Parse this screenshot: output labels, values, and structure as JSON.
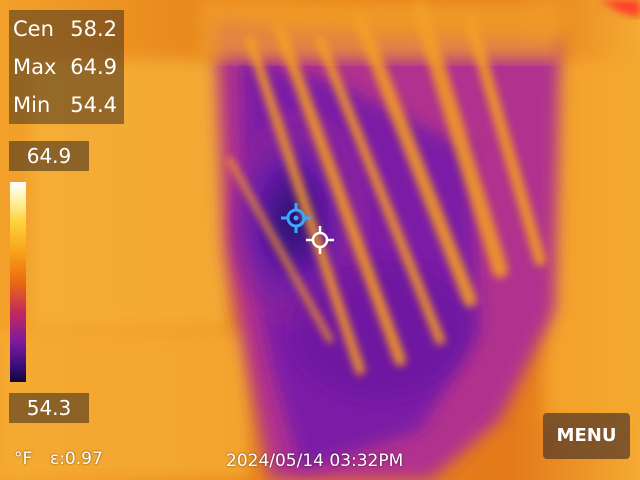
{
  "readouts": {
    "center": {
      "label": "Cen",
      "value": "58.2"
    },
    "max": {
      "label": "Max",
      "value": "64.9"
    },
    "min": {
      "label": "Min",
      "value": "54.4"
    }
  },
  "scale": {
    "top_value": "64.9",
    "bottom_value": "54.3"
  },
  "status": {
    "unit": "°F",
    "emissivity": "ε:0.97",
    "datetime": "2024/05/14 03:32PM"
  },
  "menu_label": "MENU",
  "colors": {
    "hot": "#ffd23c",
    "warm": "#ea8a18",
    "cool": "#8a1ea8",
    "cold": "#1a0a52",
    "crosshair_blue": "#3aa8ff"
  },
  "icons": {
    "center_spot": "crosshair-icon",
    "cold_spot": "crosshair-blue-icon"
  }
}
